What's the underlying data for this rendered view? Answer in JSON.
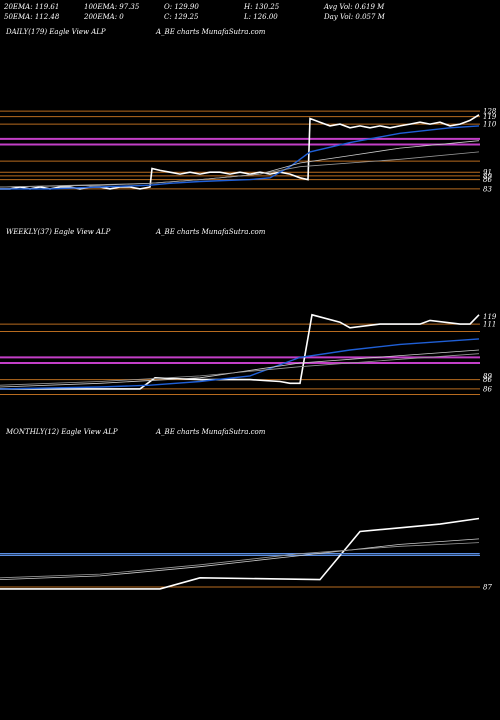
{
  "header": {
    "rows": [
      [
        "20EMA: 119.61",
        "100EMA: 97.35",
        "O: 129.90",
        "H: 130.25",
        "Avg Vol: 0.619 M"
      ],
      [
        "50EMA: 112.48",
        "200EMA: 0",
        "C: 129.25",
        "L: 126.00",
        "Day Vol: 0.057 M"
      ]
    ]
  },
  "chart_data": [
    {
      "type": "line",
      "title": "DAILY(179) Eagle  View  ALP",
      "source": "A_BE charts MunafaSutra.com",
      "ylim": [
        80,
        134
      ],
      "price_labels": [
        "128",
        "119",
        "110",
        "91",
        "89",
        "86",
        "83"
      ],
      "price_label_values": [
        128,
        125,
        121,
        95,
        93,
        91,
        86
      ],
      "series": [
        {
          "color": "#ffffff",
          "x": [
            0,
            10,
            20,
            30,
            40,
            50,
            60,
            70,
            80,
            90,
            100,
            110,
            120,
            130,
            140,
            150,
            152,
            160,
            170,
            180,
            190,
            200,
            210,
            220,
            230,
            240,
            250,
            260,
            270,
            280,
            290,
            300,
            308,
            310,
            320,
            330,
            340,
            350,
            360,
            370,
            380,
            390,
            400,
            410,
            420,
            430,
            440,
            450,
            460,
            470,
            479
          ],
          "y": [
            86,
            86,
            87,
            86,
            87,
            86,
            87,
            87,
            86,
            87,
            87,
            86,
            87,
            87,
            86,
            87,
            97,
            96,
            95,
            94,
            95,
            94,
            95,
            95,
            94,
            95,
            94,
            95,
            94,
            95,
            94,
            92,
            91,
            124,
            122,
            120,
            121,
            119,
            120,
            119,
            120,
            119,
            120,
            121,
            122,
            121,
            122,
            120,
            121,
            123,
            126
          ]
        },
        {
          "color": "#1f5fd6",
          "x": [
            0,
            50,
            100,
            150,
            170,
            200,
            250,
            270,
            290,
            310,
            350,
            400,
            450,
            479
          ],
          "y": [
            86,
            86,
            87,
            88,
            89,
            90,
            91,
            92,
            98,
            106,
            111,
            116,
            119,
            120
          ]
        },
        {
          "color": "#cccccc",
          "x": [
            0,
            100,
            150,
            200,
            260,
            300,
            350,
            400,
            479
          ],
          "y": [
            87,
            88,
            89,
            91,
            94,
            100,
            104,
            108,
            112
          ]
        },
        {
          "color": "#999999",
          "x": [
            0,
            150,
            200,
            260,
            300,
            400,
            479
          ],
          "y": [
            87,
            89,
            91,
            94,
            98,
            102,
            106
          ]
        }
      ],
      "hlines": [
        {
          "value": 128,
          "color": "#b86b1f"
        },
        {
          "value": 125,
          "color": "#b86b1f"
        },
        {
          "value": 121,
          "color": "#b86b1f"
        },
        {
          "value": 113,
          "color": "#c33fc7"
        },
        {
          "value": 110,
          "color": "#c33fc7"
        },
        {
          "value": 101,
          "color": "#b86b1f"
        },
        {
          "value": 95,
          "color": "#b86b1f"
        },
        {
          "value": 93,
          "color": "#b86b1f"
        },
        {
          "value": 91,
          "color": "#b86b1f"
        },
        {
          "value": 86,
          "color": "#b86b1f"
        }
      ]
    },
    {
      "type": "line",
      "title": "WEEKLY(37) Eagle  View  ALP",
      "source": "A_BE charts MunafaSutra.com",
      "ylim": [
        80,
        134
      ],
      "price_labels": [
        "119",
        "111",
        "89",
        "86",
        "86"
      ],
      "price_label_values": [
        125,
        121,
        93,
        91,
        86
      ],
      "series": [
        {
          "color": "#ffffff",
          "x": [
            0,
            50,
            100,
            140,
            155,
            200,
            250,
            280,
            290,
            300,
            312,
            340,
            350,
            380,
            420,
            430,
            460,
            470,
            479
          ],
          "y": [
            86,
            86,
            86,
            86,
            92,
            91,
            91,
            90,
            89,
            89,
            126,
            122,
            119,
            121,
            121,
            123,
            121,
            121,
            126
          ]
        },
        {
          "color": "#1f5fd6",
          "x": [
            0,
            100,
            150,
            200,
            250,
            300,
            350,
            400,
            479
          ],
          "y": [
            86,
            87,
            88,
            90,
            93,
            103,
            107,
            110,
            113
          ]
        },
        {
          "color": "#cccccc",
          "x": [
            0,
            100,
            200,
            300,
            400,
            479
          ],
          "y": [
            87,
            89,
            92,
            100,
            104,
            107
          ]
        },
        {
          "color": "#999999",
          "x": [
            0,
            100,
            200,
            300,
            400,
            479
          ],
          "y": [
            88,
            90,
            93,
            98,
            102,
            105
          ]
        }
      ],
      "hlines": [
        {
          "value": 121,
          "color": "#b86b1f"
        },
        {
          "value": 117,
          "color": "#b86b1f"
        },
        {
          "value": 103,
          "color": "#c33fc7"
        },
        {
          "value": 100,
          "color": "#c33fc7"
        },
        {
          "value": 91,
          "color": "#b86b1f"
        },
        {
          "value": 86,
          "color": "#b86b1f"
        },
        {
          "value": 83,
          "color": "#b86b1f"
        }
      ]
    },
    {
      "type": "line",
      "title": "MONTHLY(12) Eagle  View  ALP",
      "source": "A_BE charts MunafaSutra.com",
      "ylim": [
        80,
        134
      ],
      "price_labels": [
        "87"
      ],
      "price_label_values": [
        87
      ],
      "series": [
        {
          "color": "#ffffff",
          "x": [
            0,
            160,
            200,
            320,
            360,
            400,
            440,
            479
          ],
          "y": [
            86,
            86,
            92,
            91,
            117,
            119,
            121,
            124
          ]
        },
        {
          "color": "#5a8de0",
          "x": [
            0,
            479
          ],
          "y": [
            105,
            105
          ]
        },
        {
          "color": "#cccccc",
          "x": [
            0,
            100,
            200,
            300,
            400,
            479
          ],
          "y": [
            91,
            93,
            98,
            104,
            110,
            113
          ]
        },
        {
          "color": "#999999",
          "x": [
            0,
            100,
            200,
            300,
            400,
            479
          ],
          "y": [
            92,
            94,
            99,
            105,
            109,
            111
          ]
        }
      ],
      "hlines": [
        {
          "value": 105,
          "color": "#5a8de0"
        },
        {
          "value": 104,
          "color": "#5a8de0"
        },
        {
          "value": 87,
          "color": "#b86b1f"
        }
      ]
    }
  ]
}
